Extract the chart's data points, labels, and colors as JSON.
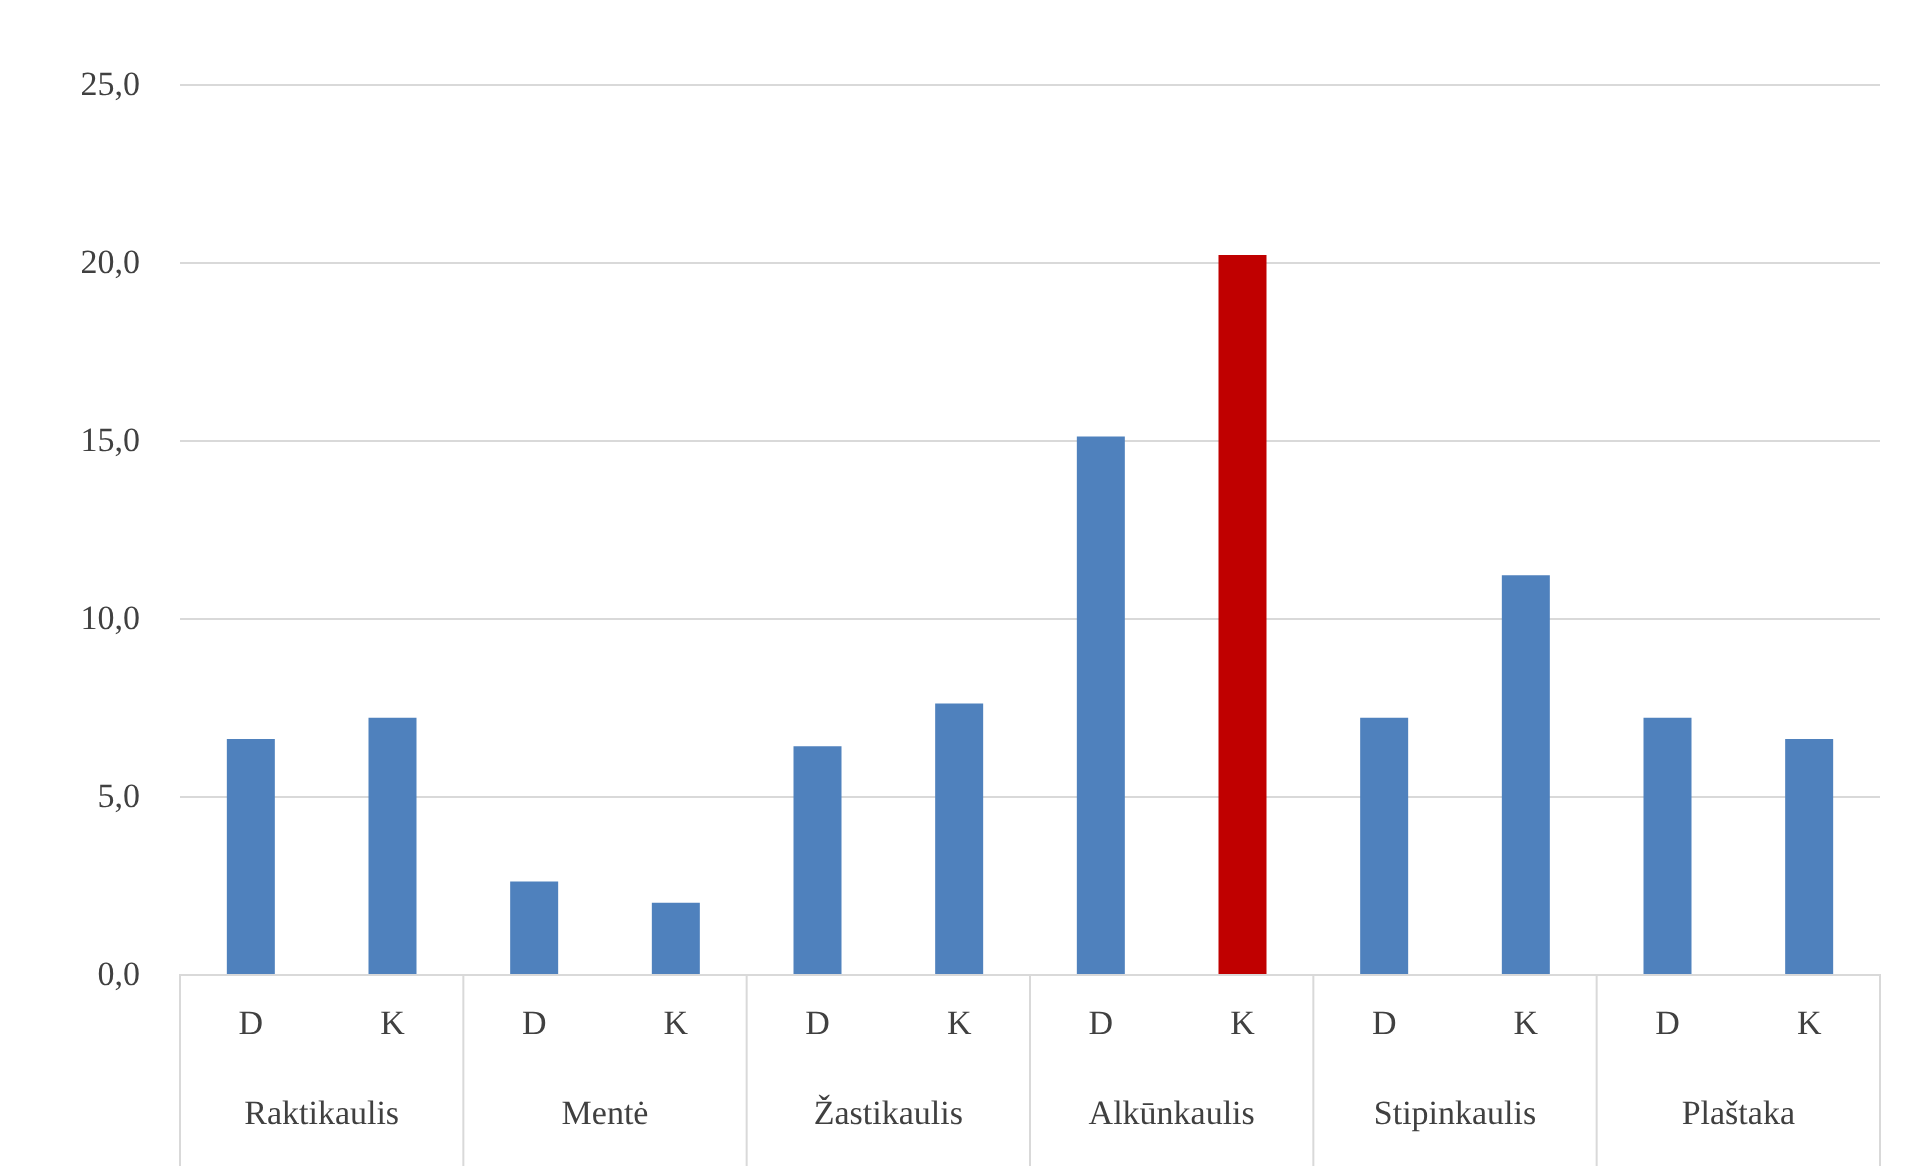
{
  "chart_data": {
    "type": "bar",
    "categories": [
      "D",
      "K",
      "D",
      "K",
      "D",
      "K",
      "D",
      "K",
      "D",
      "K",
      "D",
      "K"
    ],
    "values": [
      6.6,
      7.2,
      2.6,
      2.0,
      6.4,
      7.6,
      15.1,
      20.2,
      7.2,
      11.2,
      7.2,
      6.6
    ],
    "colors": [
      "#4f81bd",
      "#4f81bd",
      "#4f81bd",
      "#4f81bd",
      "#4f81bd",
      "#4f81bd",
      "#4f81bd",
      "#c00000",
      "#4f81bd",
      "#4f81bd",
      "#4f81bd",
      "#4f81bd"
    ],
    "ylim": [
      0,
      25
    ],
    "yticks": [
      {
        "value": 0,
        "label": "0,0"
      },
      {
        "value": 5,
        "label": "5,0"
      },
      {
        "value": 10,
        "label": "10,0"
      },
      {
        "value": 15,
        "label": "15,0"
      },
      {
        "value": 20,
        "label": "20,0"
      },
      {
        "value": 25,
        "label": "25,0"
      }
    ],
    "grid": "y",
    "annotations": [
      "Raktikaulis",
      "Mentė",
      "Žastikaulis",
      "Alkūnkaulis",
      "Stipinkaulis",
      "Plaštaka"
    ]
  }
}
